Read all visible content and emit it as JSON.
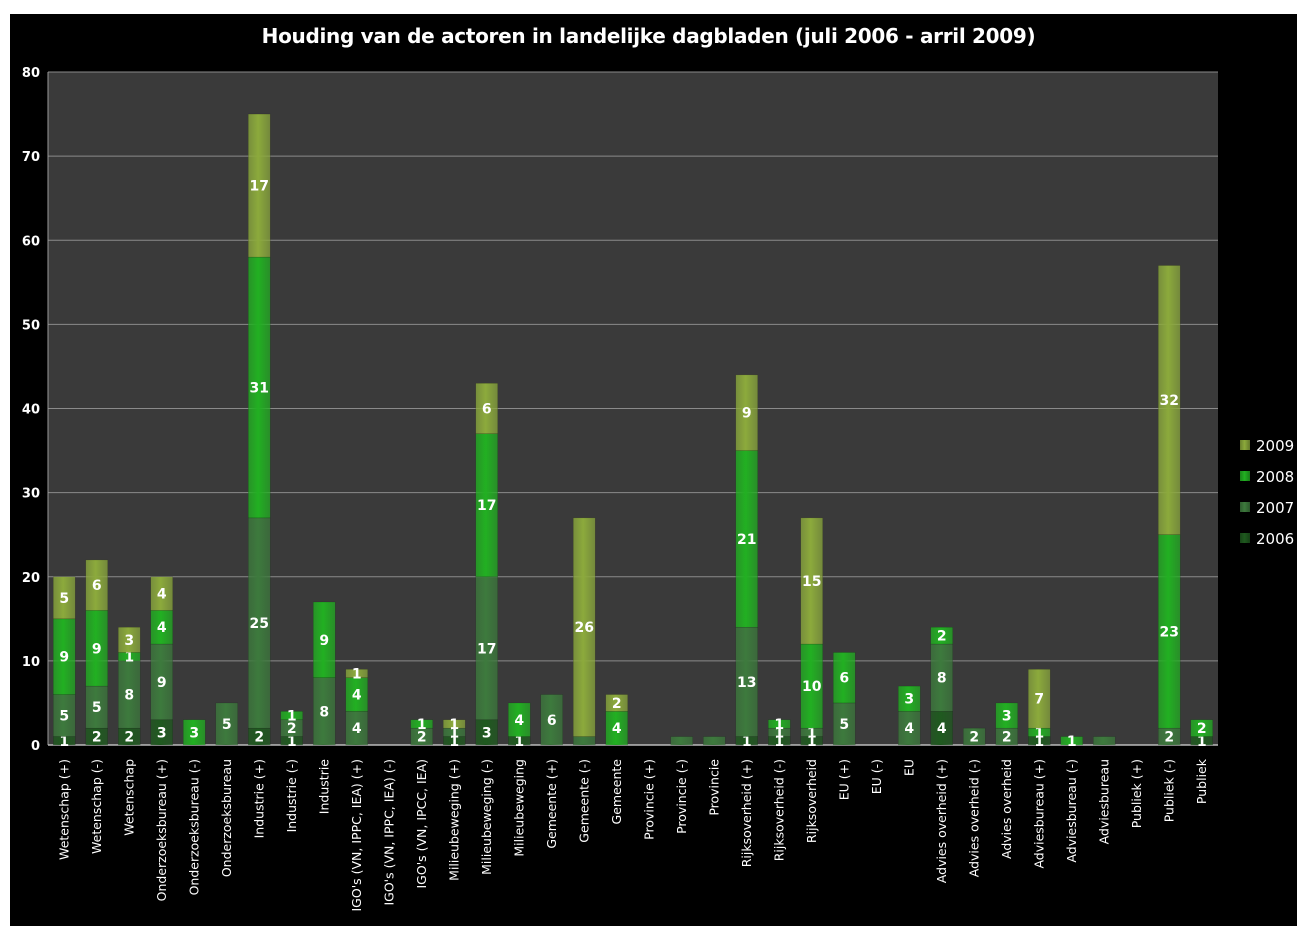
{
  "chart_data": {
    "type": "bar",
    "stacked": true,
    "title": "Houding van de actoren in landelijke dagbladen (juli 2006 - arril 2009)",
    "xlabel": "",
    "ylabel": "",
    "ylim": [
      0,
      80
    ],
    "yticks": [
      0,
      10,
      20,
      30,
      40,
      50,
      60,
      70,
      80
    ],
    "grid": true,
    "legend_position": "right",
    "background": "#000000",
    "plot_background": "#3a3a3a",
    "categories": [
      "Wetenschap (+)",
      "Wetenschap (-)",
      "Wetenschap",
      "Onderzoeksbureau (+)",
      "Onderzoeksbureau (-)",
      "Onderzoeksbureau",
      "Industrie (+)",
      "Industrie (-)",
      "Industrie",
      "IGO's (VN, IPPC, IEA) (+)",
      "IGO's (VN, IPPC, IEA) (-)",
      "IGO's (VN, IPCC, IEA)",
      "Milieubeweging (+)",
      "Milieubeweging (-)",
      "Milieubeweging",
      "Gemeente (+)",
      "Gemeente (-)",
      "Gemeente",
      "Provincie (+)",
      "Provincie (-)",
      "Provincie",
      "Rijksoverheid (+)",
      "Rijksoverheid (-)",
      "Rijksoverheid",
      "EU (+)",
      "EU (-)",
      "EU",
      "Advies overheid  (+)",
      "Advies overheid (-)",
      "Advies overheid",
      "Adviesbureau (+)",
      "Adviesbureau (-)",
      "Adviesbureau",
      "Publiek (+)",
      "Publiek (-)",
      "Publiek"
    ],
    "series": [
      {
        "name": "2006",
        "color": "#1f5a1f",
        "values": [
          1,
          2,
          2,
          3,
          0,
          0,
          2,
          1,
          0,
          0,
          0,
          0,
          1,
          3,
          1,
          0,
          0,
          0,
          0,
          0,
          0,
          1,
          1,
          1,
          0,
          0,
          0,
          4,
          0,
          0,
          1,
          0,
          0,
          0,
          0,
          1
        ]
      },
      {
        "name": "2007",
        "color": "#3d7a3d",
        "values": [
          5,
          5,
          8,
          9,
          0,
          5,
          25,
          2,
          8,
          4,
          0,
          2,
          1,
          17,
          0,
          6,
          1,
          0,
          0,
          1,
          1,
          13,
          1,
          1,
          5,
          0,
          4,
          8,
          2,
          2,
          0,
          0,
          1,
          0,
          2,
          0
        ]
      },
      {
        "name": "2008",
        "color": "#22b022",
        "values": [
          9,
          9,
          1,
          4,
          3,
          0,
          31,
          1,
          9,
          4,
          0,
          1,
          0,
          17,
          4,
          0,
          0,
          4,
          0,
          0,
          0,
          21,
          1,
          10,
          6,
          0,
          3,
          2,
          0,
          3,
          1,
          1,
          0,
          0,
          23,
          2
        ]
      },
      {
        "name": "2009",
        "color": "#8caa3c",
        "values": [
          5,
          6,
          3,
          4,
          0,
          0,
          17,
          0,
          0,
          1,
          0,
          0,
          1,
          6,
          0,
          0,
          26,
          2,
          0,
          0,
          0,
          9,
          0,
          15,
          0,
          0,
          0,
          0,
          0,
          0,
          7,
          0,
          0,
          0,
          32,
          0
        ]
      }
    ],
    "hidden_labels": {
      "2006": [
        true,
        true,
        true,
        true,
        true,
        true,
        true,
        true,
        true,
        true,
        true,
        true,
        true,
        true,
        true,
        true,
        true,
        true,
        true,
        true,
        true,
        true,
        true,
        true,
        true,
        true,
        true,
        true,
        true,
        true,
        true,
        true,
        true,
        true,
        true,
        true
      ],
      "2007": [
        true,
        true,
        true,
        true,
        true,
        true,
        true,
        true,
        true,
        true,
        true,
        true,
        true,
        true,
        true,
        true,
        false,
        true,
        true,
        false,
        false,
        true,
        true,
        true,
        true,
        true,
        true,
        true,
        true,
        true,
        true,
        true,
        false,
        true,
        true,
        true
      ],
      "2008": [
        true,
        true,
        true,
        true,
        true,
        true,
        true,
        true,
        true,
        true,
        true,
        true,
        true,
        true,
        true,
        true,
        true,
        true,
        true,
        true,
        true,
        true,
        true,
        true,
        true,
        true,
        true,
        true,
        true,
        true,
        true,
        true,
        true,
        true,
        true,
        true
      ],
      "2009": [
        true,
        true,
        true,
        true,
        true,
        true,
        true,
        true,
        true,
        true,
        true,
        true,
        true,
        true,
        true,
        true,
        true,
        true,
        true,
        true,
        true,
        true,
        true,
        true,
        true,
        true,
        true,
        true,
        true,
        true,
        true,
        true,
        true,
        true,
        true,
        true
      ]
    }
  }
}
